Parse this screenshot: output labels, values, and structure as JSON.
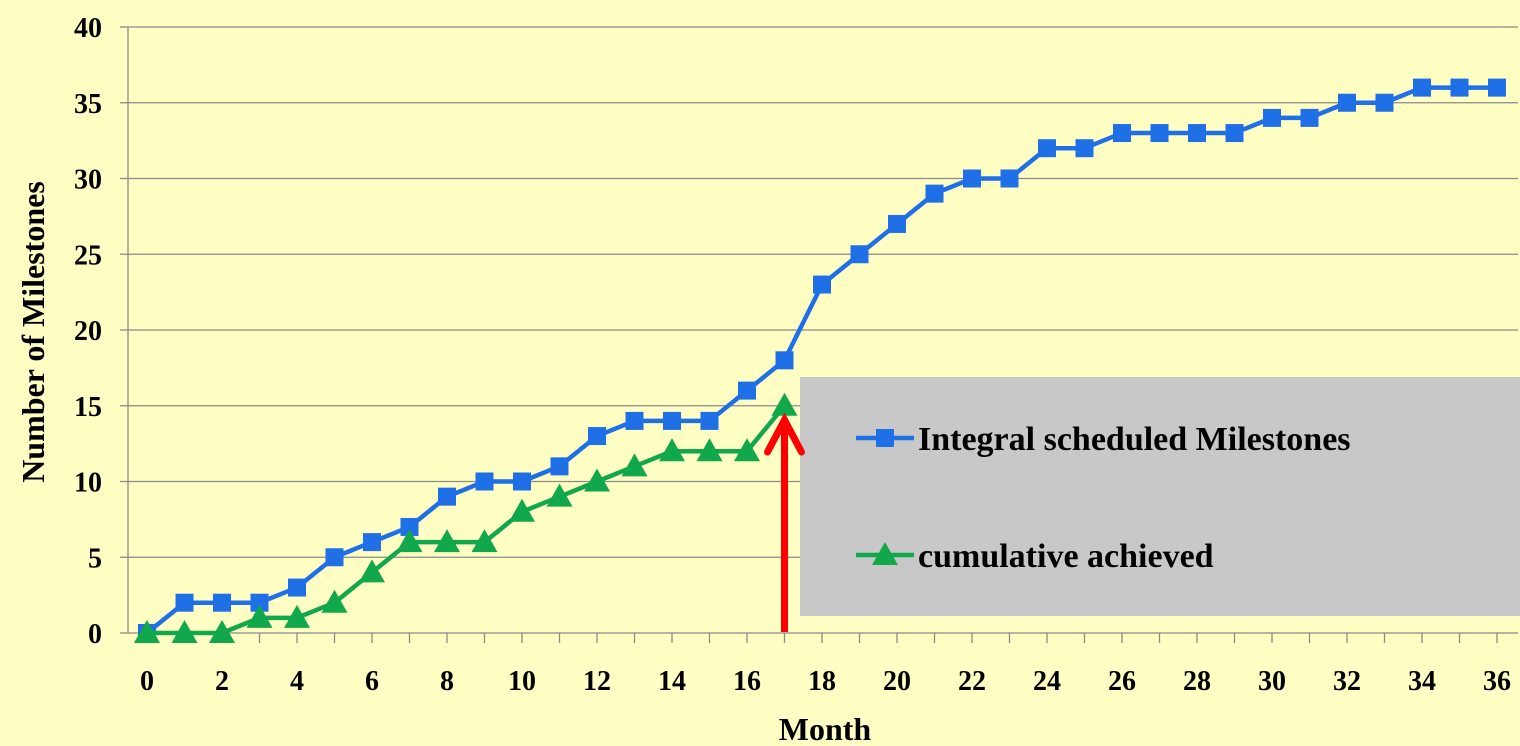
{
  "chart_data": {
    "type": "line",
    "title": "",
    "xlabel": "Month",
    "ylabel": "Number of Milestones",
    "xlim": [
      0,
      36
    ],
    "ylim": [
      0,
      40
    ],
    "x_ticks": [
      0,
      2,
      4,
      6,
      8,
      10,
      12,
      14,
      16,
      18,
      20,
      22,
      24,
      26,
      28,
      30,
      32,
      34,
      36
    ],
    "y_ticks": [
      0,
      5,
      10,
      15,
      20,
      25,
      30,
      35,
      40
    ],
    "grid": "horizontal",
    "legend": "right",
    "series": [
      {
        "name": "Integral scheduled Milestones",
        "color": "#1f6fe6",
        "marker": "square",
        "x": [
          0,
          1,
          2,
          3,
          4,
          5,
          6,
          7,
          8,
          9,
          10,
          11,
          12,
          13,
          14,
          15,
          16,
          17,
          18,
          19,
          20,
          21,
          22,
          23,
          24,
          25,
          26,
          27,
          28,
          29,
          30,
          31,
          32,
          33,
          34,
          35,
          36
        ],
        "y": [
          0,
          2,
          2,
          2,
          3,
          5,
          6,
          7,
          9,
          10,
          10,
          11,
          13,
          14,
          14,
          14,
          16,
          18,
          23,
          25,
          27,
          29,
          30,
          30,
          32,
          32,
          33,
          33,
          33,
          33,
          34,
          34,
          35,
          35,
          36,
          36,
          36
        ]
      },
      {
        "name": "cumulative achieved",
        "color": "#10a84a",
        "marker": "triangle",
        "x": [
          0,
          1,
          2,
          3,
          4,
          5,
          6,
          7,
          8,
          9,
          10,
          11,
          12,
          13,
          14,
          15,
          16,
          17
        ],
        "y": [
          0,
          0,
          0,
          1,
          1,
          2,
          4,
          6,
          6,
          6,
          8,
          9,
          10,
          11,
          12,
          12,
          12,
          15
        ]
      }
    ],
    "annotation": {
      "type": "arrow",
      "x": 17,
      "color": "#ff0000"
    },
    "legend_background": "#c8c8c8",
    "plot_background": "#ffffc4"
  }
}
